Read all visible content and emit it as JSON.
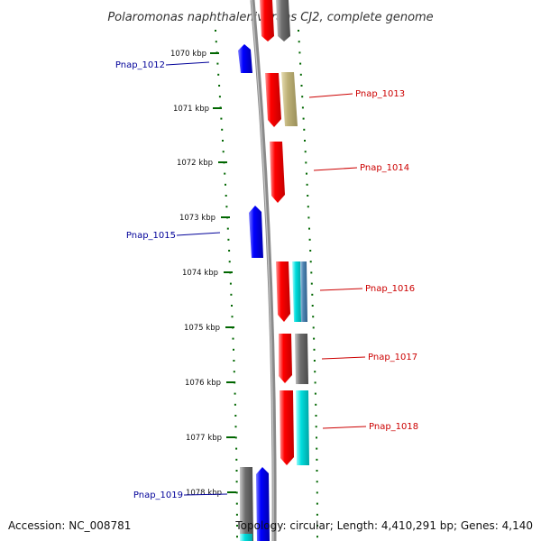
{
  "title": "Polaromonas naphthalenivorans CJ2, complete genome",
  "footer": {
    "accession": "Accession: NC_008781",
    "topology": "Topology: circular; Length: 4,410,291 bp; Genes: 4,140"
  },
  "colors": {
    "forward_label": "#cc0000",
    "reverse_label": "#000099",
    "tick": "#006600",
    "backbone": "#808080"
  },
  "ticks": [
    "1070 kbp",
    "1071 kbp",
    "1072 kbp",
    "1073 kbp",
    "1074 kbp",
    "1075 kbp",
    "1076 kbp",
    "1077 kbp",
    "1078 kbp"
  ],
  "genes": [
    {
      "label": "Pnap_1012",
      "strand": "reverse"
    },
    {
      "label": "Pnap_1013",
      "strand": "forward"
    },
    {
      "label": "Pnap_1014",
      "strand": "forward"
    },
    {
      "label": "Pnap_1015",
      "strand": "reverse"
    },
    {
      "label": "Pnap_1016",
      "strand": "forward"
    },
    {
      "label": "Pnap_1017",
      "strand": "forward"
    },
    {
      "label": "Pnap_1018",
      "strand": "forward"
    },
    {
      "label": "Pnap_1019",
      "strand": "reverse"
    }
  ]
}
